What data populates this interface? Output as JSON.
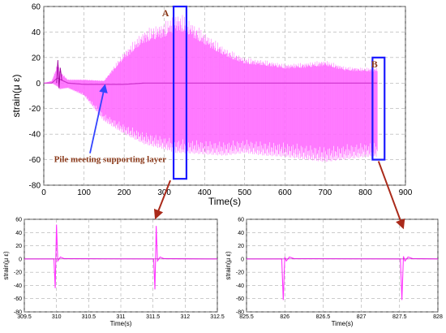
{
  "chart_data": [
    {
      "id": "main",
      "type": "line",
      "xlabel": "Time(s)",
      "ylabel": "strain(μ ε)",
      "xlim": [
        0,
        900
      ],
      "ylim": [
        -80,
        60
      ],
      "xticks": [
        0,
        100,
        200,
        300,
        400,
        500,
        600,
        700,
        800,
        900
      ],
      "yticks": [
        -80,
        -60,
        -40,
        -20,
        0,
        20,
        40,
        60
      ],
      "grid": true,
      "color": "#ff66ff",
      "baseline_color": "#cc33cc",
      "series": [
        {
          "x": [
            0,
            20,
            30,
            35,
            40,
            60,
            100,
            150,
            200,
            250,
            300,
            330,
            350,
            400,
            450,
            500,
            550,
            600,
            650,
            700,
            750,
            800,
            830
          ],
          "upper": [
            0,
            2,
            12,
            18,
            10,
            3,
            3,
            2,
            25,
            42,
            48,
            55,
            53,
            40,
            28,
            20,
            18,
            15,
            16,
            18,
            13,
            12,
            12
          ],
          "lower": [
            0,
            0,
            -2,
            -3,
            -5,
            -4,
            -10,
            -30,
            -40,
            -48,
            -52,
            -55,
            -55,
            -56,
            -57,
            -55,
            -57,
            -58,
            -60,
            -62,
            -60,
            -58,
            -58
          ],
          "baseline": [
            0,
            0,
            3,
            4,
            3,
            0,
            -1,
            -1,
            -1,
            0,
            0,
            0,
            0,
            0,
            0,
            0,
            0,
            0,
            0,
            0,
            0,
            0,
            0
          ]
        }
      ],
      "annotations": [
        {
          "text": "A",
          "x": 315,
          "y": 60
        },
        {
          "text": "B",
          "x": 835,
          "y": 20
        },
        {
          "text": "Pile meeting supporting layer",
          "x": 165,
          "y": -62
        }
      ],
      "highlight_boxes": [
        {
          "name": "A",
          "x0": 323,
          "x1": 355,
          "y0": -75,
          "y1": 60
        },
        {
          "name": "B",
          "x0": 818,
          "x1": 848,
          "y0": -60,
          "y1": 20
        }
      ]
    },
    {
      "id": "zoom-a",
      "type": "line",
      "xlabel": "Time(s)",
      "ylabel": "strain(μ ε)",
      "xlim": [
        309.5,
        312.5
      ],
      "ylim": [
        -80,
        60
      ],
      "xticks": [
        309.5,
        310,
        310.5,
        311,
        311.5,
        312,
        312.5
      ],
      "xtick_labels": [
        "309.5",
        "310",
        "310.5",
        "311",
        "311.5",
        "312",
        "312.5"
      ],
      "yticks": [
        -80,
        -60,
        -40,
        -20,
        0,
        20,
        40,
        60
      ],
      "grid": true,
      "color": "#ff33ff",
      "spikes": [
        {
          "t": 310,
          "max": 52,
          "min": -44
        },
        {
          "t": 311.55,
          "max": 50,
          "min": -46
        }
      ]
    },
    {
      "id": "zoom-b",
      "type": "line",
      "xlabel": "Time(s)",
      "ylabel": "strain(μ ε)",
      "xlim": [
        825.5,
        828
      ],
      "ylim": [
        -80,
        60
      ],
      "xticks": [
        825.5,
        826,
        826.5,
        827,
        827.5,
        828
      ],
      "xtick_labels": [
        "825.5",
        "826",
        "826.5",
        "827",
        "827.5",
        "828"
      ],
      "yticks": [
        -80,
        -60,
        -40,
        -20,
        0,
        20,
        40,
        60
      ],
      "grid": true,
      "color": "#ff33ff",
      "spikes": [
        {
          "t": 826,
          "max": 3,
          "min": -62
        },
        {
          "t": 827.55,
          "max": 4,
          "min": -62
        }
      ]
    }
  ],
  "colors": {
    "box": "#1a1aff",
    "pointer_arrow": "#3344ff",
    "red_arrow": "#aa2a1a",
    "annotation_text": "#8B3A1A",
    "grid": "#999999"
  }
}
